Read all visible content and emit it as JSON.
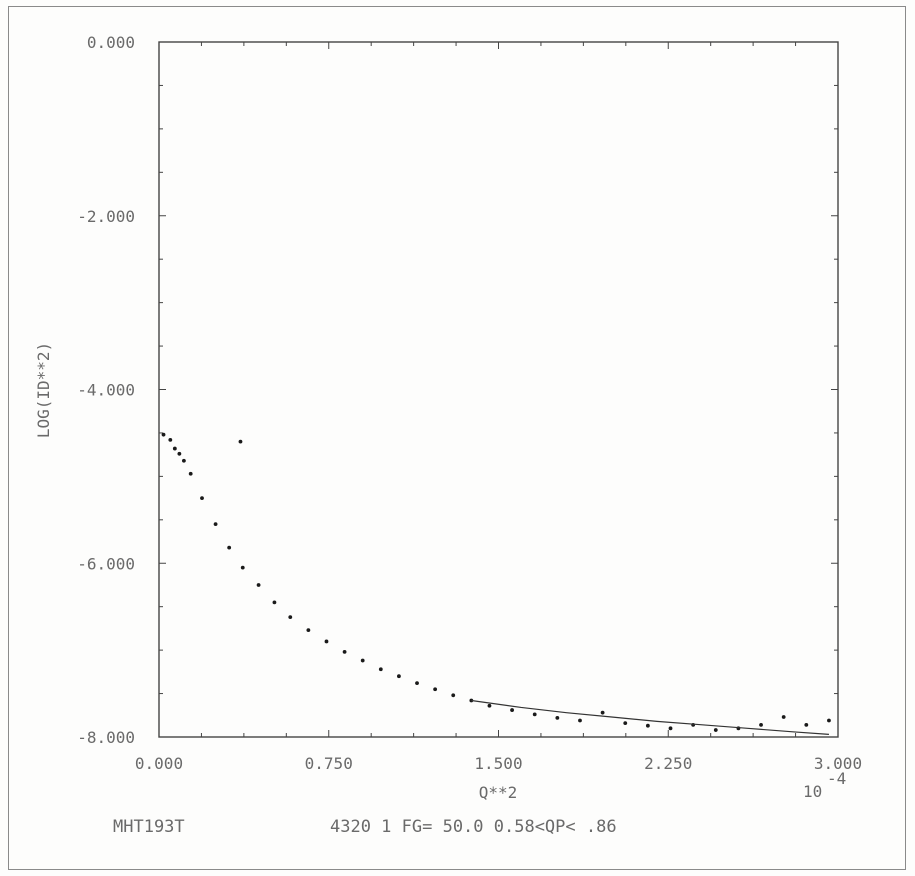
{
  "chart_data": {
    "type": "scatter",
    "title": "",
    "xlabel": "Q**2",
    "ylabel": "LOG(ID**2)",
    "x_multiplier_label": "10",
    "x_multiplier_exponent": "-4",
    "xlim": [
      0.0,
      3.0
    ],
    "ylim": [
      -8.0,
      0.0
    ],
    "x_ticks": [
      "0.000",
      "0.750",
      "1.500",
      "2.250",
      "3.000"
    ],
    "y_ticks": [
      "0.000",
      "-2.000",
      "-4.000",
      "-6.000",
      "-8.000"
    ],
    "grid": false,
    "series": [
      {
        "kind": "points",
        "x": [
          0.02,
          0.05,
          0.07,
          0.09,
          0.11,
          0.14,
          0.19,
          0.25,
          0.31,
          0.37,
          0.44,
          0.51,
          0.58,
          0.66,
          0.74,
          0.82,
          0.9,
          0.98,
          1.06,
          1.14,
          1.22,
          1.3,
          1.38,
          1.46,
          1.56,
          1.66,
          1.76,
          1.86,
          1.96,
          2.06,
          2.16,
          2.26,
          2.36,
          2.46,
          2.56,
          2.66,
          2.76,
          2.86,
          2.96,
          0.36
        ],
        "y": [
          -4.52,
          -4.58,
          -4.68,
          -4.74,
          -4.82,
          -4.97,
          -5.25,
          -5.55,
          -5.82,
          -6.05,
          -6.25,
          -6.45,
          -6.62,
          -6.77,
          -6.9,
          -7.02,
          -7.12,
          -7.22,
          -7.3,
          -7.38,
          -7.45,
          -7.52,
          -7.58,
          -7.64,
          -7.69,
          -7.74,
          -7.78,
          -7.81,
          -7.72,
          -7.84,
          -7.87,
          -7.9,
          -7.86,
          -7.92,
          -7.9,
          -7.86,
          -7.77,
          -7.86,
          -7.81,
          -4.6
        ]
      },
      {
        "kind": "line",
        "x": [
          1.38,
          1.6,
          1.8,
          2.0,
          2.2,
          2.4,
          2.6,
          2.8,
          2.96
        ],
        "y": [
          -7.58,
          -7.66,
          -7.72,
          -7.77,
          -7.82,
          -7.86,
          -7.9,
          -7.94,
          -7.97
        ]
      }
    ]
  },
  "footer": {
    "run_id": "MHT193T",
    "params": "4320 1 FG= 50.0 0.58<QP< .86"
  }
}
